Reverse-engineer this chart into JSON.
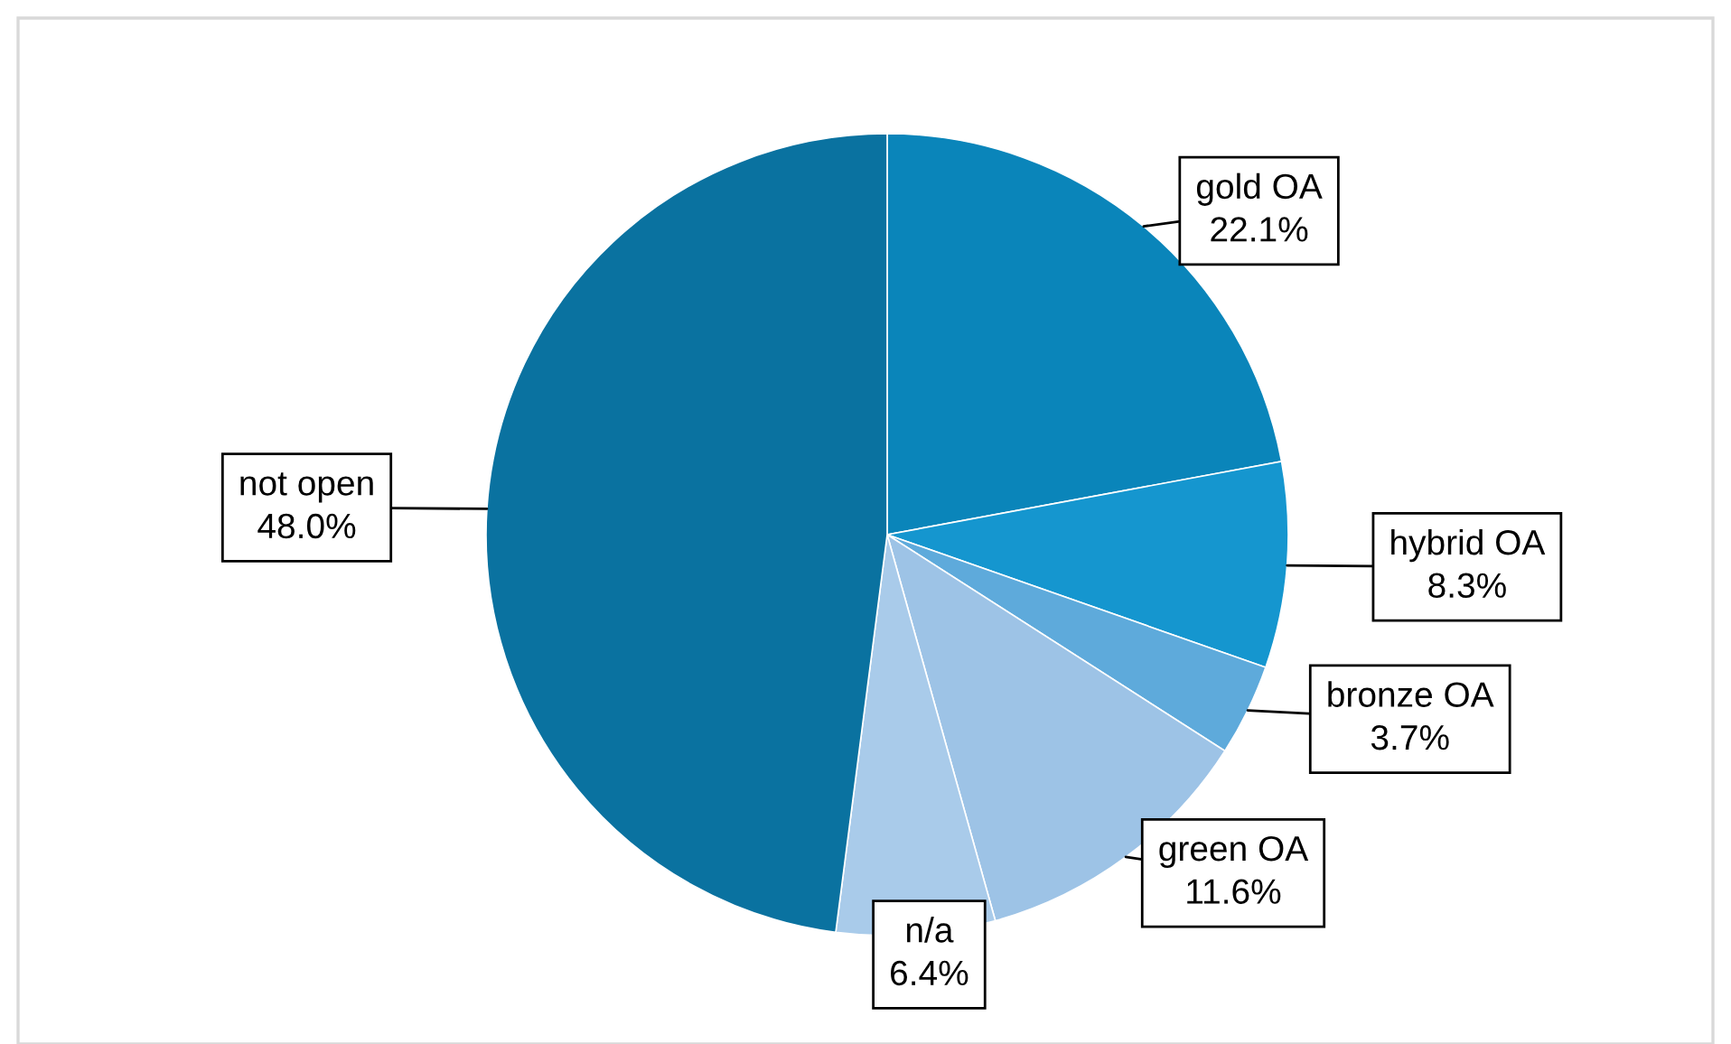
{
  "chart_data": {
    "type": "pie",
    "categories": [
      "gold OA",
      "hybrid OA",
      "bronze OA",
      "green OA",
      "n/a",
      "not open"
    ],
    "values": [
      22.1,
      8.3,
      3.7,
      11.6,
      6.4,
      48.0
    ],
    "colors": [
      "#0a85ba",
      "#1596cf",
      "#5eaadb",
      "#9dc3e6",
      "#a9cbea",
      "#0a72a0"
    ],
    "value_labels": [
      "22.1%",
      "8.3%",
      "3.7%",
      "11.6%",
      "6.4%",
      "48.0%"
    ]
  }
}
